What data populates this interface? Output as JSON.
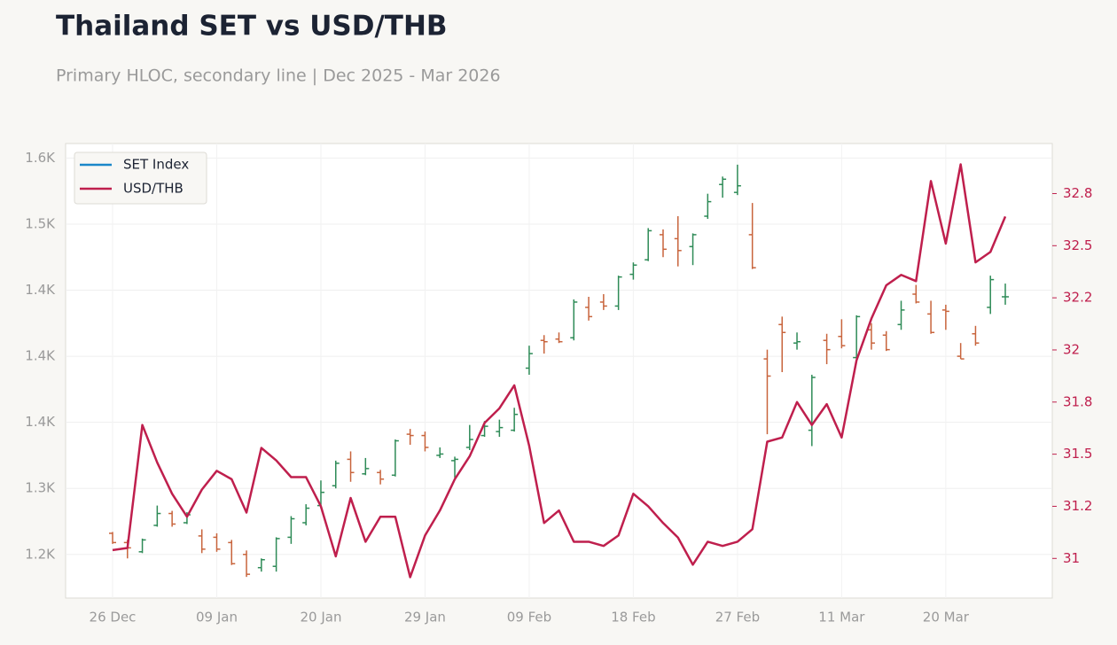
{
  "chart_data": {
    "type": "hloc",
    "title": "Thailand SET vs USD/THB",
    "subtitle": "Primary HLOC, secondary line | Dec 2025 - Mar 2026",
    "categories": [
      "26 Dec",
      null,
      null,
      null,
      null,
      null,
      null,
      "09 Jan",
      null,
      null,
      null,
      null,
      null,
      null,
      "20 Jan",
      null,
      null,
      null,
      null,
      null,
      null,
      "29 Jan",
      null,
      null,
      null,
      null,
      null,
      null,
      "09 Feb",
      null,
      null,
      null,
      null,
      null,
      null,
      "18 Feb",
      null,
      null,
      null,
      null,
      null,
      null,
      "27 Feb",
      null,
      null,
      null,
      null,
      null,
      null,
      "11 Mar",
      null,
      null,
      null,
      null,
      null,
      null,
      "20 Mar",
      null,
      null,
      null,
      null
    ],
    "series": [
      {
        "name": "SET Index",
        "color": "#1a87c9",
        "up_color": "#2e8b57",
        "down_color": "#c8643c",
        "open": [
          1266,
          1259,
          1252,
          1272,
          1281,
          1274,
          1264,
          1263,
          1259,
          1250,
          1240,
          1241,
          1263,
          1274,
          1287,
          1302,
          1322,
          1311,
          1312,
          1310,
          1341,
          1340,
          1325,
          1321,
          1331,
          1340,
          1343,
          1344,
          1391,
          1412,
          1413,
          1414,
          1437,
          1441,
          1438,
          1462,
          1473,
          1492,
          1489,
          1483,
          1506,
          1530,
          1524,
          1492,
          1398,
          1424,
          1410,
          1344,
          1412,
          1415,
          1399,
          1420,
          1416,
          1424,
          1447,
          1432,
          1435,
          1400,
          1417,
          1437,
          1445
        ],
        "high": [
          1267,
          1261,
          1262,
          1287,
          1283,
          1282,
          1269,
          1266,
          1261,
          1253,
          1247,
          1263,
          1279,
          1288,
          1306,
          1321,
          1328,
          1323,
          1314,
          1337,
          1345,
          1343,
          1331,
          1324,
          1348,
          1351,
          1352,
          1361,
          1408,
          1416,
          1418,
          1443,
          1445,
          1447,
          1461,
          1471,
          1497,
          1496,
          1506,
          1493,
          1523,
          1536,
          1545,
          1516,
          1405,
          1430,
          1418,
          1386,
          1417,
          1428,
          1431,
          1425,
          1419,
          1442,
          1454,
          1442,
          1439,
          1410,
          1423,
          1461,
          1455
        ],
        "low": [
          1258,
          1247,
          1251,
          1271,
          1271,
          1273,
          1251,
          1252,
          1242,
          1233,
          1237,
          1237,
          1258,
          1272,
          1285,
          1300,
          1305,
          1310,
          1303,
          1309,
          1333,
          1328,
          1323,
          1308,
          1329,
          1339,
          1339,
          1343,
          1386,
          1402,
          1410,
          1412,
          1427,
          1435,
          1435,
          1458,
          1472,
          1475,
          1468,
          1469,
          1504,
          1520,
          1522,
          1466,
          1341,
          1388,
          1405,
          1332,
          1394,
          1406,
          1398,
          1405,
          1404,
          1420,
          1440,
          1417,
          1420,
          1398,
          1408,
          1432,
          1439
        ],
        "close": [
          1259,
          1255,
          1261,
          1281,
          1273,
          1280,
          1254,
          1254,
          1243,
          1235,
          1246,
          1262,
          1277,
          1285,
          1297,
          1319,
          1312,
          1315,
          1307,
          1336,
          1340,
          1331,
          1326,
          1322,
          1337,
          1347,
          1346,
          1356,
          1402,
          1411,
          1411,
          1441,
          1430,
          1438,
          1460,
          1469,
          1495,
          1481,
          1480,
          1492,
          1517,
          1534,
          1529,
          1467,
          1385,
          1418,
          1411,
          1384,
          1405,
          1408,
          1430,
          1410,
          1405,
          1435,
          1441,
          1418,
          1434,
          1398,
          1410,
          1458,
          1445
        ]
      },
      {
        "name": "USD/THB",
        "color": "#bf1f4d",
        "axis": "y2",
        "values": [
          31.04,
          31.05,
          31.64,
          31.46,
          31.31,
          31.2,
          31.33,
          31.42,
          31.38,
          31.22,
          31.53,
          31.47,
          31.39,
          31.39,
          31.25,
          31.01,
          31.29,
          31.08,
          31.2,
          31.2,
          30.91,
          31.11,
          31.23,
          31.38,
          31.49,
          31.65,
          31.72,
          31.83,
          31.54,
          31.17,
          31.23,
          31.08,
          31.08,
          31.06,
          31.11,
          31.31,
          31.25,
          31.17,
          31.1,
          30.97,
          31.08,
          31.06,
          31.08,
          31.14,
          31.56,
          31.58,
          31.75,
          31.64,
          31.74,
          31.58,
          31.95,
          32.15,
          32.31,
          32.36,
          32.33,
          32.81,
          32.51,
          32.89,
          32.42,
          32.47,
          32.64
        ]
      }
    ],
    "ylim": [
      1217,
      1561
    ],
    "yticks": [
      {
        "value": 1250,
        "label": "1.2K"
      },
      {
        "value": 1300,
        "label": "1.3K"
      },
      {
        "value": 1350,
        "label": "1.4K"
      },
      {
        "value": 1400,
        "label": "1.4K"
      },
      {
        "value": 1450,
        "label": "1.4K"
      },
      {
        "value": 1500,
        "label": "1.5K"
      },
      {
        "value": 1550,
        "label": "1.6K"
      }
    ],
    "y2lim": [
      30.81,
      32.99
    ],
    "y2ticks": [
      {
        "value": 31,
        "label": "31"
      },
      {
        "value": 31.25,
        "label": "31.2"
      },
      {
        "value": 31.5,
        "label": "31.5"
      },
      {
        "value": 31.75,
        "label": "31.8"
      },
      {
        "value": 32,
        "label": "32"
      },
      {
        "value": 32.25,
        "label": "32.2"
      },
      {
        "value": 32.5,
        "label": "32.5"
      },
      {
        "value": 32.75,
        "label": "32.8"
      }
    ],
    "grid": true,
    "legend": "upper left"
  }
}
